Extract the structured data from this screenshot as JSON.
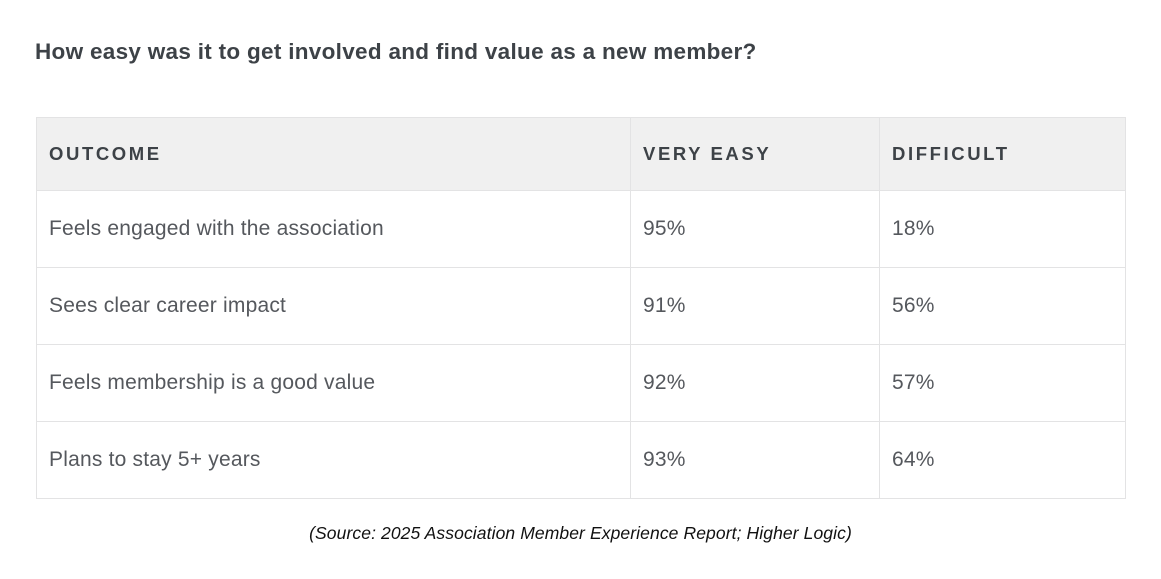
{
  "title": "How easy was it to get involved and find value as a new member?",
  "table": {
    "columns": {
      "outcome": "OUTCOME",
      "very_easy": "VERY EASY",
      "difficult": "DIFFICULT"
    },
    "rows": [
      {
        "outcome": "Feels engaged with the association",
        "very_easy": "95%",
        "difficult": "18%"
      },
      {
        "outcome": "Sees clear career impact",
        "very_easy": "91%",
        "difficult": "56%"
      },
      {
        "outcome": "Feels membership is a good value",
        "very_easy": "92%",
        "difficult": "57%"
      },
      {
        "outcome": "Plans to stay 5+ years",
        "very_easy": "93%",
        "difficult": "64%"
      }
    ]
  },
  "source": "(Source: 2025 Association Member Experience Report; Higher Logic)",
  "colors": {
    "header_background": "#f0f0f0",
    "header_text": "#3d4247",
    "body_text": "#55585d",
    "border": "#e3e3e4",
    "title_text": "#3d4247",
    "source_text": "#111111"
  },
  "chart_data": {
    "type": "table",
    "title": "How easy was it to get involved and find value as a new member?",
    "categories": [
      "Feels engaged with the association",
      "Sees clear career impact",
      "Feels membership is a good value",
      "Plans to stay 5+ years"
    ],
    "series": [
      {
        "name": "VERY EASY",
        "values": [
          95,
          91,
          92,
          93
        ]
      },
      {
        "name": "DIFFICULT",
        "values": [
          18,
          56,
          57,
          64
        ]
      }
    ],
    "value_unit": "%",
    "annotations": [
      "(Source: 2025 Association Member Experience Report; Higher Logic)"
    ],
    "legend_position": "none",
    "grid": false
  }
}
